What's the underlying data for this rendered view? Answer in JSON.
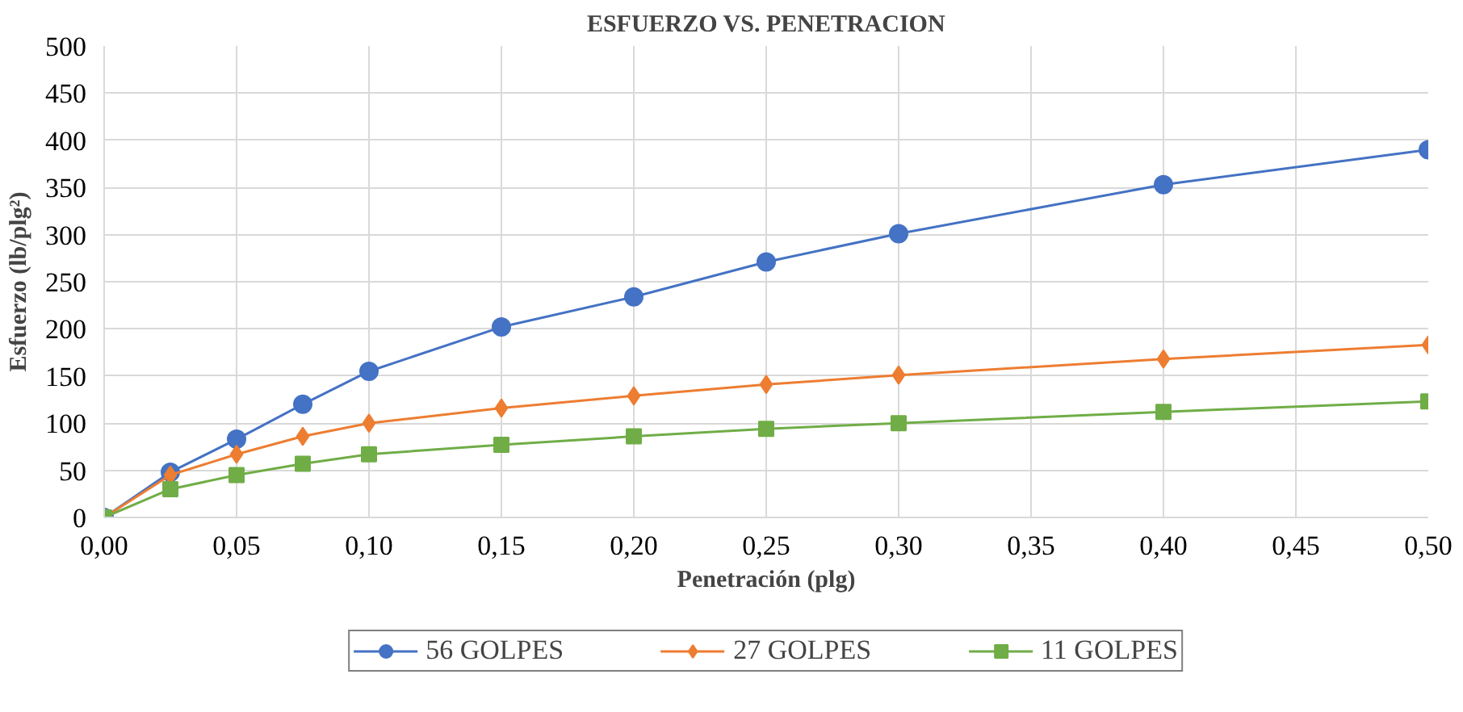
{
  "chart_data": {
    "type": "line",
    "title": "ESFUERZO VS. PENETRACION",
    "xlabel": "Penetración (plg)",
    "ylabel": "Esfuerzo (lb/plg²)",
    "x": [
      0,
      0.025,
      0.05,
      0.075,
      0.1,
      0.15,
      0.2,
      0.25,
      0.3,
      0.4,
      0.5
    ],
    "series": [
      {
        "name": "56 GOLPES",
        "color": "#4472c4",
        "marker": "circle",
        "values": [
          0,
          48,
          83,
          120,
          155,
          202,
          234,
          271,
          301,
          353,
          390
        ]
      },
      {
        "name": "27 GOLPES",
        "color": "#ed7d31",
        "marker": "diamond",
        "values": [
          0,
          45,
          67,
          86,
          100,
          116,
          129,
          141,
          151,
          168,
          183
        ]
      },
      {
        "name": "11 GOLPES",
        "color": "#70ad47",
        "marker": "square",
        "values": [
          0,
          30,
          45,
          57,
          67,
          77,
          86,
          94,
          100,
          112,
          123
        ]
      }
    ],
    "xlim": [
      0,
      0.5
    ],
    "ylim": [
      0,
      500
    ],
    "xticks": [
      {
        "value": 0,
        "label": "0,00"
      },
      {
        "value": 0.05,
        "label": "0,05"
      },
      {
        "value": 0.1,
        "label": "0,10"
      },
      {
        "value": 0.15,
        "label": "0,15"
      },
      {
        "value": 0.2,
        "label": "0,20"
      },
      {
        "value": 0.25,
        "label": "0,25"
      },
      {
        "value": 0.3,
        "label": "0,30"
      },
      {
        "value": 0.35,
        "label": "0,35"
      },
      {
        "value": 0.4,
        "label": "0,40"
      },
      {
        "value": 0.45,
        "label": "0,45"
      },
      {
        "value": 0.5,
        "label": "0,50"
      }
    ],
    "yticks": [
      0,
      50,
      100,
      150,
      200,
      250,
      300,
      350,
      400,
      450,
      500
    ],
    "grid": true,
    "legend": "bottom"
  }
}
